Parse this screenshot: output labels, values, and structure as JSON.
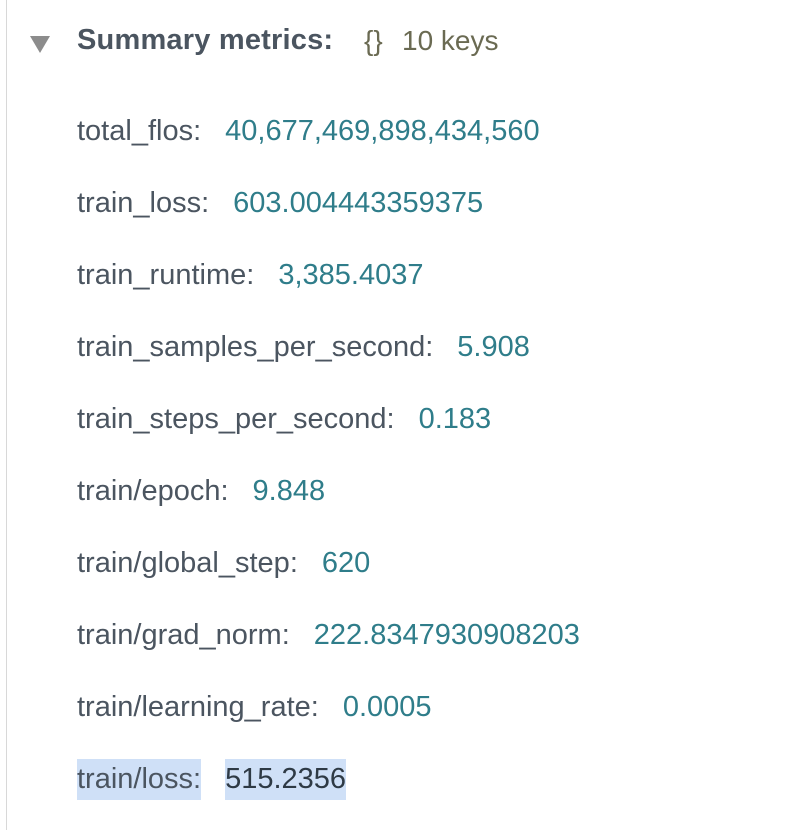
{
  "summary": {
    "title": "Summary metrics:",
    "braces": "{}",
    "key_count": "10 keys",
    "colors": {
      "key_text": "#4b5560",
      "value_text": "#2f7d8a",
      "selection": "#cfe0f7"
    },
    "items": [
      {
        "key": "total_flos:",
        "value": "40,677,469,898,434,560"
      },
      {
        "key": "train_loss:",
        "value": "603.004443359375"
      },
      {
        "key": "train_runtime:",
        "value": "3,385.4037"
      },
      {
        "key": "train_samples_per_second:",
        "value": "5.908"
      },
      {
        "key": "train_steps_per_second:",
        "value": "0.183"
      },
      {
        "key": "train/epoch:",
        "value": "9.848"
      },
      {
        "key": "train/global_step:",
        "value": "620"
      },
      {
        "key": "train/grad_norm:",
        "value": "222.8347930908203"
      },
      {
        "key": "train/learning_rate:",
        "value": "0.0005"
      },
      {
        "key": "train/loss:",
        "value": "515.2356"
      }
    ]
  }
}
